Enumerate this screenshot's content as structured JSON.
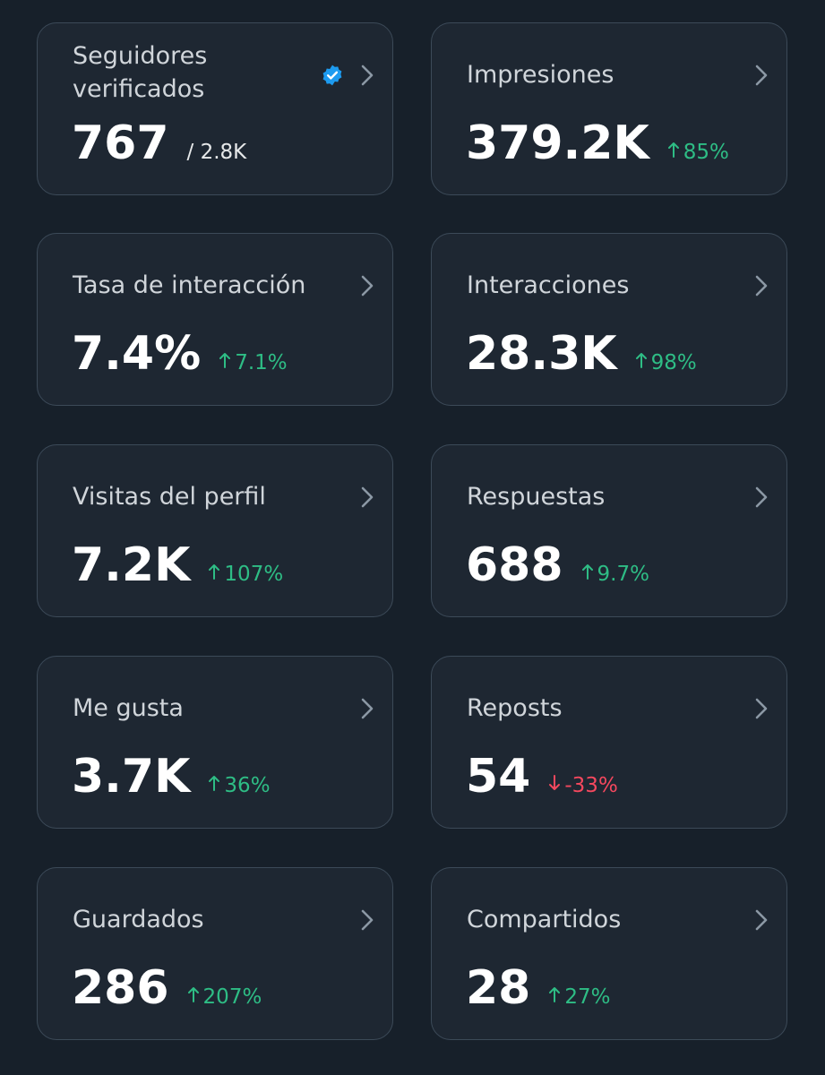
{
  "cards": [
    {
      "title": "Seguidores verificados",
      "value": "767",
      "secondary": "/ 2.8K",
      "verified": true
    },
    {
      "title": "Impresiones",
      "value": "379.2K",
      "change": "85%",
      "trend": "up"
    },
    {
      "title": "Tasa de interacción",
      "value": "7.4%",
      "change": "7.1%",
      "trend": "up"
    },
    {
      "title": "Interacciones",
      "value": "28.3K",
      "change": "98%",
      "trend": "up"
    },
    {
      "title": "Visitas del perfil",
      "value": "7.2K",
      "change": "107%",
      "trend": "up"
    },
    {
      "title": "Respuestas",
      "value": "688",
      "change": "9.7%",
      "trend": "up"
    },
    {
      "title": "Me gusta",
      "value": "3.7K",
      "change": "36%",
      "trend": "up"
    },
    {
      "title": "Reposts",
      "value": "54",
      "change": "-33%",
      "trend": "down"
    },
    {
      "title": "Guardados",
      "value": "286",
      "change": "207%",
      "trend": "up"
    },
    {
      "title": "Compartidos",
      "value": "28",
      "change": "27%",
      "trend": "up"
    }
  ]
}
